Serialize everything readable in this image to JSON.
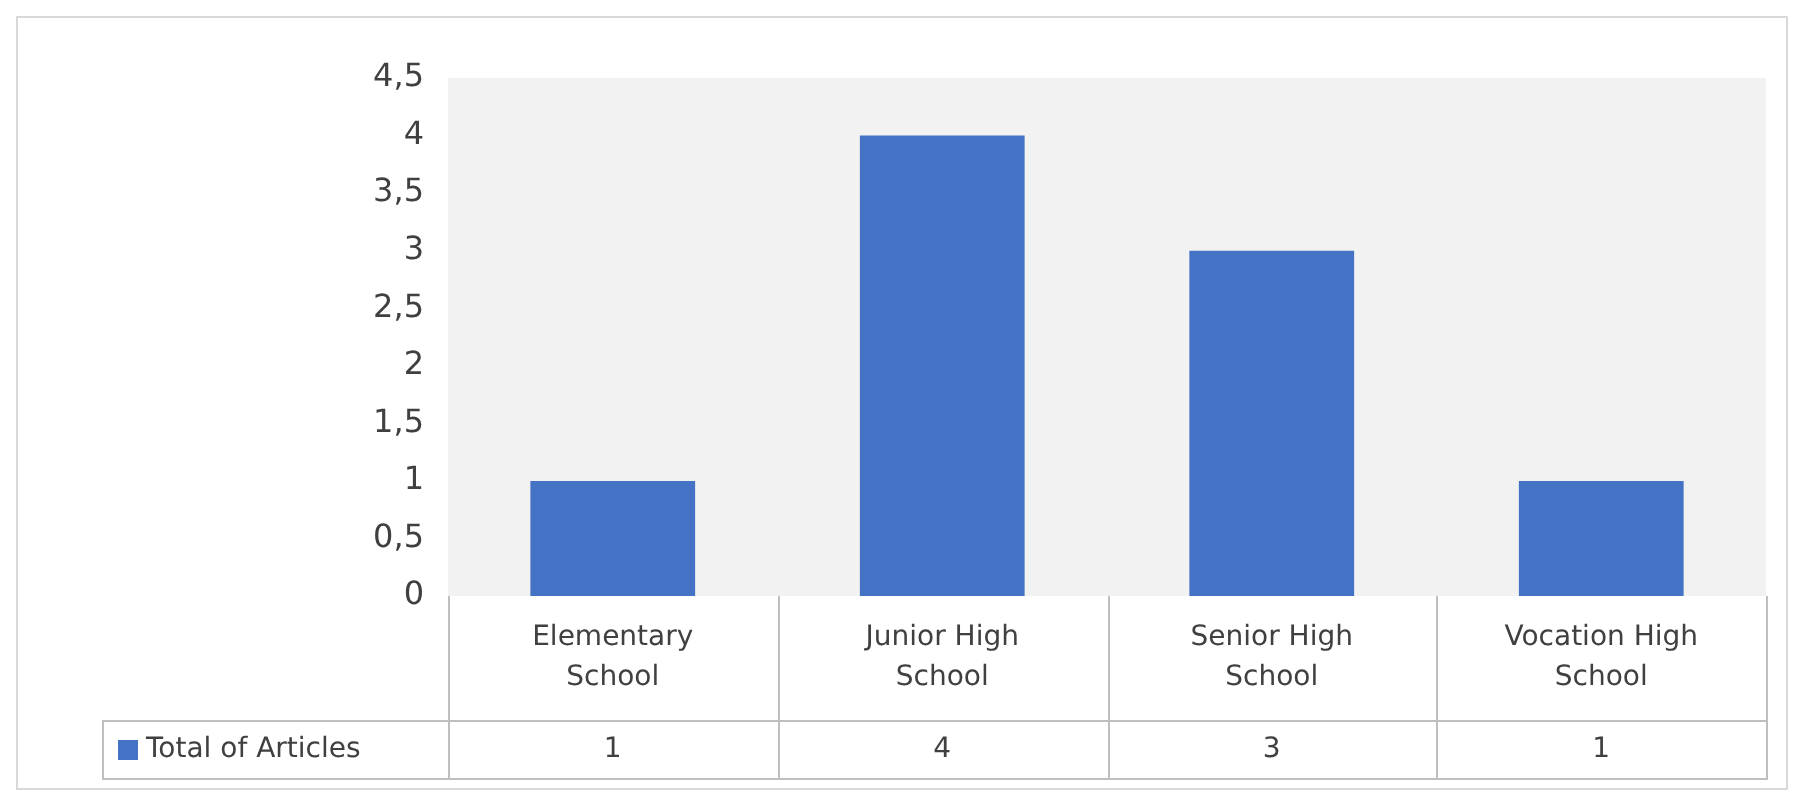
{
  "chart_data": {
    "type": "bar",
    "categories": [
      "Elementary School",
      "Junior High School",
      "Senior High School",
      "Vocation High School"
    ],
    "series": [
      {
        "name": "Total of Articles",
        "color": "#4472c4",
        "values": [
          1,
          4,
          3,
          1
        ]
      }
    ],
    "ylim": [
      0,
      4.5
    ],
    "yticks": [
      0,
      {
        "value": 0.5,
        "label": "0,5"
      },
      1,
      {
        "value": 1.5,
        "label": "1,5"
      },
      2,
      {
        "value": 2.5,
        "label": "2,5"
      },
      3,
      {
        "value": 3.5,
        "label": "3,5"
      },
      4,
      {
        "value": 4.5,
        "label": "4,5"
      }
    ],
    "grid": false,
    "legend": "bottom",
    "data_labels": true
  }
}
